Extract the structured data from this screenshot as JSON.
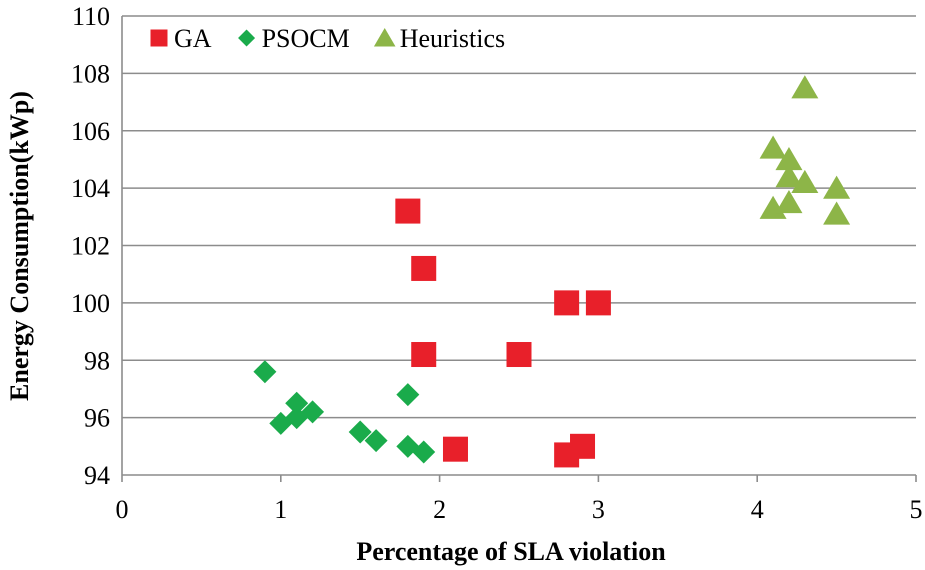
{
  "chart_data": {
    "type": "scatter",
    "title": "",
    "xlabel": "Percentage of SLA violation",
    "ylabel": "Energy Consumption(kWp)",
    "xlim": [
      0,
      5
    ],
    "ylim": [
      94,
      110
    ],
    "xticks": [
      0,
      1,
      2,
      3,
      4,
      5
    ],
    "yticks": [
      94,
      96,
      98,
      100,
      102,
      104,
      106,
      108,
      110
    ],
    "grid": "horizontal",
    "legend_position": "top-left",
    "series": [
      {
        "name": "GA",
        "marker": "square",
        "color": "#e8202a",
        "points": [
          [
            1.8,
            103.2
          ],
          [
            1.9,
            101.2
          ],
          [
            1.9,
            98.2
          ],
          [
            2.1,
            94.9
          ],
          [
            2.5,
            98.2
          ],
          [
            2.8,
            100.0
          ],
          [
            2.8,
            94.7
          ],
          [
            2.9,
            95.0
          ],
          [
            3.0,
            100.0
          ]
        ]
      },
      {
        "name": "PSOCM",
        "marker": "diamond",
        "color": "#1aab4b",
        "points": [
          [
            0.9,
            97.6
          ],
          [
            1.0,
            95.8
          ],
          [
            1.1,
            96.5
          ],
          [
            1.1,
            96.0
          ],
          [
            1.2,
            96.2
          ],
          [
            1.5,
            95.5
          ],
          [
            1.6,
            95.2
          ],
          [
            1.8,
            96.8
          ],
          [
            1.8,
            95.0
          ],
          [
            1.9,
            94.8
          ]
        ]
      },
      {
        "name": "Heuristics",
        "marker": "triangle",
        "color": "#8db548",
        "points": [
          [
            4.1,
            105.4
          ],
          [
            4.1,
            103.3
          ],
          [
            4.2,
            105.0
          ],
          [
            4.2,
            104.4
          ],
          [
            4.2,
            103.5
          ],
          [
            4.3,
            107.5
          ],
          [
            4.3,
            104.2
          ],
          [
            4.5,
            104.0
          ],
          [
            4.5,
            103.1
          ]
        ]
      }
    ]
  }
}
